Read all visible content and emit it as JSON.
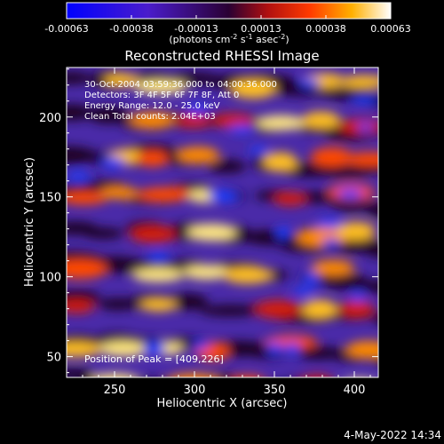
{
  "colorbar": {
    "ticks": [
      "-0.00063",
      "-0.00038",
      "-0.00013",
      "0.00013",
      "0.00038",
      "0.00063"
    ],
    "units_main": "(photons cm",
    "units_sup1": "-2",
    "units_mid": " s",
    "units_sup2": "-1",
    "units_mid2": " asec",
    "units_sup3": "-2",
    "units_end": ")"
  },
  "chart_data": {
    "type": "heatmap",
    "title": "Reconstructed RHESSI Image",
    "xlabel": "Heliocentric X (arcsec)",
    "ylabel": "Heliocentric Y (arcsec)",
    "xlim": [
      220,
      415
    ],
    "ylim": [
      37,
      231
    ],
    "x_ticks": [
      250,
      300,
      350,
      400
    ],
    "y_ticks": [
      50,
      100,
      150,
      200
    ],
    "value_range": [
      -0.00063,
      0.00063
    ],
    "annotations": [
      "30-Oct-2004 03:59:36.000 to 04:00:36.000",
      "Detectors: 3F 4F 5F 6F 7F 8F, Att 0",
      "Energy Range: 12.0 - 25.0 keV",
      "Clean     Total counts: 2.04E+03"
    ],
    "peak_label": "Position of Peak = [409,226]"
  },
  "footer": {
    "timestamp": "4-May-2022 14:34"
  }
}
